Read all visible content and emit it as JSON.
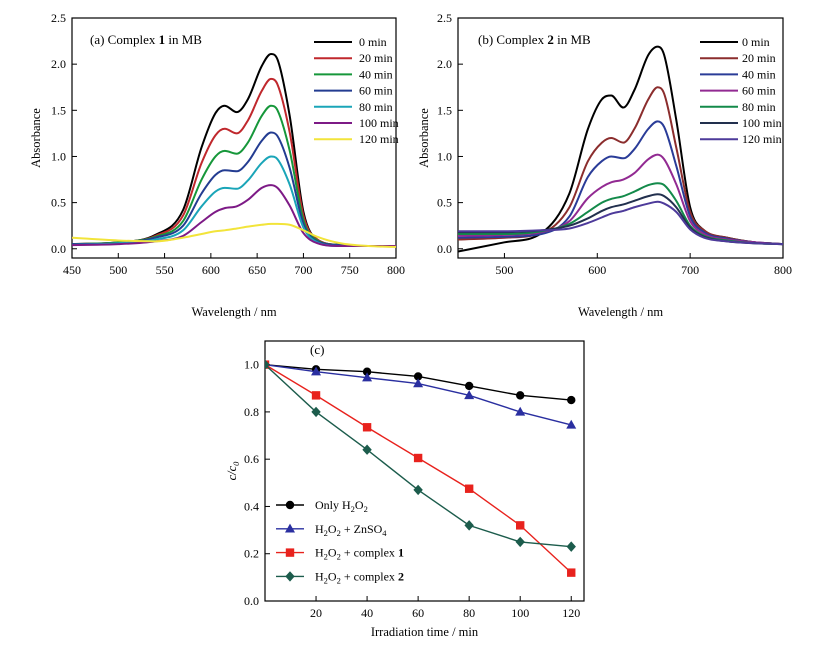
{
  "chart_data": [
    {
      "panel": "a",
      "type": "line",
      "title": "(a) Complex 1 in MB",
      "title_parts": [
        "(a) Complex ",
        "1",
        " in MB"
      ],
      "xlabel": "Wavelength / nm",
      "ylabel": "Absorbance",
      "xlim": [
        450,
        800
      ],
      "ylim": [
        -0.1,
        2.5
      ],
      "xticks": [
        450,
        500,
        550,
        600,
        650,
        700,
        750,
        800
      ],
      "yticks": [
        0.0,
        0.5,
        1.0,
        1.5,
        2.0,
        2.5
      ],
      "ytick_labels": [
        "0.0",
        "0.5",
        "1.0",
        "1.5",
        "2.0",
        "2.5"
      ],
      "legend_position": "top-right",
      "x": [
        450,
        500,
        540,
        570,
        590,
        605,
        615,
        628,
        640,
        655,
        665,
        672,
        685,
        700,
        715,
        740,
        770,
        800
      ],
      "series": [
        {
          "name": "0 min",
          "color": "#000000",
          "values": [
            0.05,
            0.07,
            0.15,
            0.42,
            1.1,
            1.47,
            1.55,
            1.48,
            1.62,
            1.98,
            2.11,
            2.05,
            1.45,
            0.4,
            0.1,
            0.04,
            0.03,
            0.03
          ]
        },
        {
          "name": "20 min",
          "color": "#c0282d",
          "values": [
            0.05,
            0.07,
            0.14,
            0.36,
            0.93,
            1.23,
            1.3,
            1.25,
            1.39,
            1.71,
            1.84,
            1.78,
            1.27,
            0.36,
            0.1,
            0.04,
            0.03,
            0.03
          ]
        },
        {
          "name": "40 min",
          "color": "#16973a",
          "values": [
            0.05,
            0.07,
            0.13,
            0.3,
            0.75,
            1.0,
            1.06,
            1.03,
            1.15,
            1.44,
            1.55,
            1.5,
            1.07,
            0.31,
            0.09,
            0.04,
            0.03,
            0.03
          ]
        },
        {
          "name": "60 min",
          "color": "#233c91",
          "values": [
            0.05,
            0.06,
            0.12,
            0.25,
            0.6,
            0.8,
            0.85,
            0.84,
            0.94,
            1.17,
            1.26,
            1.22,
            0.88,
            0.27,
            0.08,
            0.04,
            0.03,
            0.03
          ]
        },
        {
          "name": "80 min",
          "color": "#1aa5b8",
          "values": [
            0.04,
            0.06,
            0.1,
            0.2,
            0.46,
            0.62,
            0.66,
            0.65,
            0.74,
            0.93,
            1.0,
            0.97,
            0.7,
            0.23,
            0.07,
            0.03,
            0.03,
            0.03
          ]
        },
        {
          "name": "100 min",
          "color": "#7d1a86",
          "values": [
            0.04,
            0.05,
            0.08,
            0.14,
            0.29,
            0.4,
            0.44,
            0.46,
            0.53,
            0.66,
            0.69,
            0.66,
            0.47,
            0.17,
            0.06,
            0.03,
            0.03,
            0.03
          ]
        },
        {
          "name": "120 min",
          "color": "#f2e43a",
          "values": [
            0.12,
            0.09,
            0.08,
            0.12,
            0.16,
            0.19,
            0.2,
            0.22,
            0.24,
            0.26,
            0.27,
            0.27,
            0.26,
            0.2,
            0.13,
            0.06,
            0.03,
            0.02
          ]
        }
      ]
    },
    {
      "panel": "b",
      "type": "line",
      "title": "(b) Complex 2 in MB",
      "title_parts": [
        "(b) Complex ",
        "2",
        " in MB"
      ],
      "xlabel": "Wavelength / nm",
      "ylabel": "Absorbance",
      "xlim": [
        450,
        800
      ],
      "ylim": [
        -0.1,
        2.5
      ],
      "xticks": [
        500,
        600,
        700,
        800
      ],
      "yticks": [
        0.0,
        0.5,
        1.0,
        1.5,
        2.0,
        2.5
      ],
      "ytick_labels": [
        "0.0",
        "0.5",
        "1.0",
        "1.5",
        "2.0",
        "2.5"
      ],
      "legend_position": "top-right",
      "x": [
        450,
        500,
        540,
        570,
        590,
        605,
        615,
        628,
        640,
        655,
        665,
        672,
        685,
        700,
        715,
        740,
        770,
        800
      ],
      "series": [
        {
          "name": "0 min",
          "color": "#000000",
          "values": [
            -0.03,
            0.07,
            0.17,
            0.6,
            1.3,
            1.62,
            1.66,
            1.53,
            1.72,
            2.1,
            2.19,
            2.1,
            1.4,
            0.45,
            0.2,
            0.12,
            0.07,
            0.05
          ]
        },
        {
          "name": "20 min",
          "color": "#8b2d2d",
          "values": [
            0.1,
            0.12,
            0.17,
            0.45,
            0.95,
            1.15,
            1.2,
            1.15,
            1.3,
            1.62,
            1.75,
            1.68,
            1.1,
            0.4,
            0.2,
            0.12,
            0.07,
            0.05
          ]
        },
        {
          "name": "40 min",
          "color": "#2a3c98",
          "values": [
            0.12,
            0.13,
            0.16,
            0.35,
            0.78,
            0.95,
            1.0,
            0.98,
            1.08,
            1.3,
            1.38,
            1.32,
            0.9,
            0.35,
            0.18,
            0.11,
            0.07,
            0.05
          ]
        },
        {
          "name": "60 min",
          "color": "#922a92",
          "values": [
            0.14,
            0.15,
            0.18,
            0.3,
            0.55,
            0.67,
            0.72,
            0.75,
            0.82,
            0.97,
            1.02,
            0.97,
            0.7,
            0.3,
            0.16,
            0.1,
            0.07,
            0.05
          ]
        },
        {
          "name": "80 min",
          "color": "#138a4a",
          "values": [
            0.16,
            0.16,
            0.19,
            0.27,
            0.4,
            0.5,
            0.54,
            0.57,
            0.62,
            0.69,
            0.71,
            0.69,
            0.52,
            0.25,
            0.14,
            0.09,
            0.06,
            0.05
          ]
        },
        {
          "name": "100 min",
          "color": "#22304e",
          "values": [
            0.18,
            0.18,
            0.2,
            0.25,
            0.33,
            0.41,
            0.45,
            0.48,
            0.52,
            0.57,
            0.59,
            0.57,
            0.45,
            0.23,
            0.13,
            0.08,
            0.06,
            0.05
          ]
        },
        {
          "name": "120 min",
          "color": "#4d3a9a",
          "values": [
            0.19,
            0.19,
            0.2,
            0.22,
            0.28,
            0.34,
            0.38,
            0.41,
            0.45,
            0.49,
            0.51,
            0.49,
            0.4,
            0.21,
            0.12,
            0.08,
            0.06,
            0.05
          ]
        }
      ]
    },
    {
      "panel": "c",
      "type": "line",
      "title": "(c)",
      "xlabel": "Irradiation time / min",
      "ylabel": "c/c",
      "ylabel_sub": "0",
      "xlim": [
        0,
        125
      ],
      "ylim": [
        0,
        1.1
      ],
      "xticks": [
        20,
        40,
        60,
        80,
        100,
        120
      ],
      "yticks": [
        0.0,
        0.2,
        0.4,
        0.6,
        0.8,
        1.0
      ],
      "ytick_labels": [
        "0.0",
        "0.2",
        "0.4",
        "0.6",
        "0.8",
        "1.0"
      ],
      "legend_position": "bottom-left",
      "x": [
        0,
        20,
        40,
        60,
        80,
        100,
        120
      ],
      "series": [
        {
          "name": "Only H2O2",
          "label_parts": [
            [
              "t",
              "Only H"
            ],
            [
              "sub",
              "2"
            ],
            [
              "t",
              "O"
            ],
            [
              "sub",
              "2"
            ]
          ],
          "color": "#000000",
          "marker": "circle",
          "values": [
            1.0,
            0.98,
            0.97,
            0.95,
            0.91,
            0.87,
            0.85
          ]
        },
        {
          "name": "H2O2 + ZnSO4",
          "label_parts": [
            [
              "t",
              "H"
            ],
            [
              "sub",
              "2"
            ],
            [
              "t",
              "O"
            ],
            [
              "sub",
              "2"
            ],
            [
              "t",
              " + ZnSO"
            ],
            [
              "sub",
              "4"
            ]
          ],
          "color": "#2a2fa0",
          "marker": "triangle",
          "values": [
            1.0,
            0.97,
            0.945,
            0.92,
            0.87,
            0.8,
            0.745
          ]
        },
        {
          "name": "H2O2 + complex 1",
          "label_parts": [
            [
              "t",
              "H"
            ],
            [
              "sub",
              "2"
            ],
            [
              "t",
              "O"
            ],
            [
              "sub",
              "2"
            ],
            [
              "t",
              " + complex "
            ],
            [
              "b",
              "1"
            ]
          ],
          "color": "#e8221d",
          "marker": "square",
          "values": [
            1.0,
            0.87,
            0.735,
            0.605,
            0.475,
            0.32,
            0.12
          ]
        },
        {
          "name": "H2O2 + complex 2",
          "label_parts": [
            [
              "t",
              "H"
            ],
            [
              "sub",
              "2"
            ],
            [
              "t",
              "O"
            ],
            [
              "sub",
              "2"
            ],
            [
              "t",
              " + complex "
            ],
            [
              "b",
              "2"
            ]
          ],
          "color": "#1c5c4c",
          "marker": "diamond",
          "values": [
            1.0,
            0.8,
            0.64,
            0.47,
            0.32,
            0.25,
            0.23
          ]
        }
      ]
    }
  ]
}
